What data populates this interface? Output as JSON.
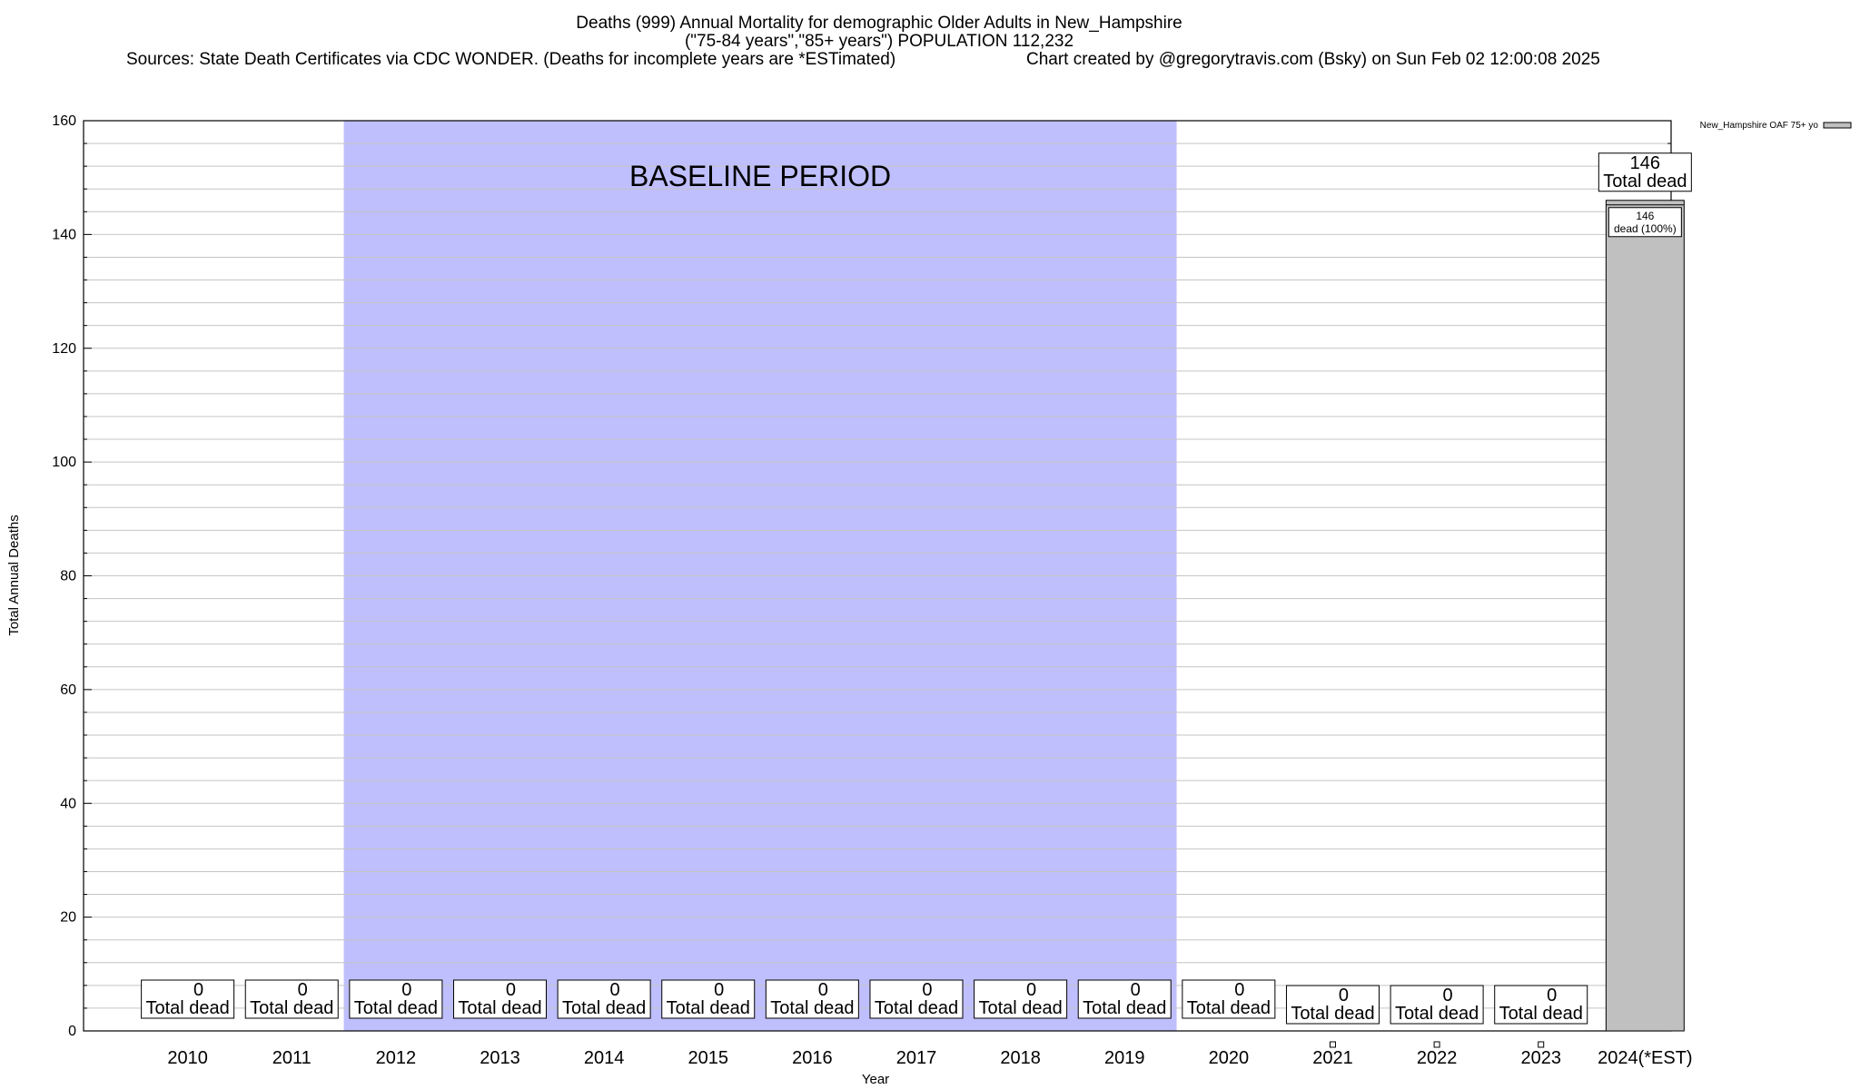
{
  "header": {
    "title_line1": "Deaths (999) Annual Mortality for demographic Older Adults in New_Hampshire",
    "title_line2": "(\"75-84 years\",\"85+ years\") POPULATION 112,232",
    "sources": "Sources: State Death Certificates via CDC WONDER. (Deaths for incomplete years are *ESTimated)",
    "credit": "Chart created by @gregorytravis.com (Bsky) on Sun Feb 02 12:00:08 2025"
  },
  "chart_data": {
    "type": "bar",
    "xlabel": "Year",
    "ylabel": "Total Annual Deaths",
    "ylim": [
      0,
      160
    ],
    "yticks": [
      "0",
      "20",
      "40",
      "60",
      "80",
      "100",
      "120",
      "140",
      "160"
    ],
    "grid": true,
    "legend": {
      "placement": "top-right",
      "entry": "New_Hampshire OAF 75+ yo"
    },
    "baseline": {
      "label": "BASELINE PERIOD",
      "start": "2012",
      "end": "2019",
      "color": "#bfbffd"
    },
    "bar_color": "#c0c0c0",
    "categories": [
      "2010",
      "2011",
      "2012",
      "2013",
      "2014",
      "2015",
      "2016",
      "2017",
      "2018",
      "2019",
      "2020",
      "2021",
      "2022",
      "2023",
      "2024(*EST)"
    ],
    "series": [
      {
        "values": [
          0,
          0,
          0,
          0,
          0,
          0,
          0,
          0,
          0,
          0,
          0,
          0,
          0,
          0,
          146
        ]
      }
    ],
    "total_label_suffix": "Total dead",
    "segment_labels": [
      {
        "category": "2024(*EST)",
        "value": "146",
        "text": "dead (100%)"
      }
    ]
  }
}
